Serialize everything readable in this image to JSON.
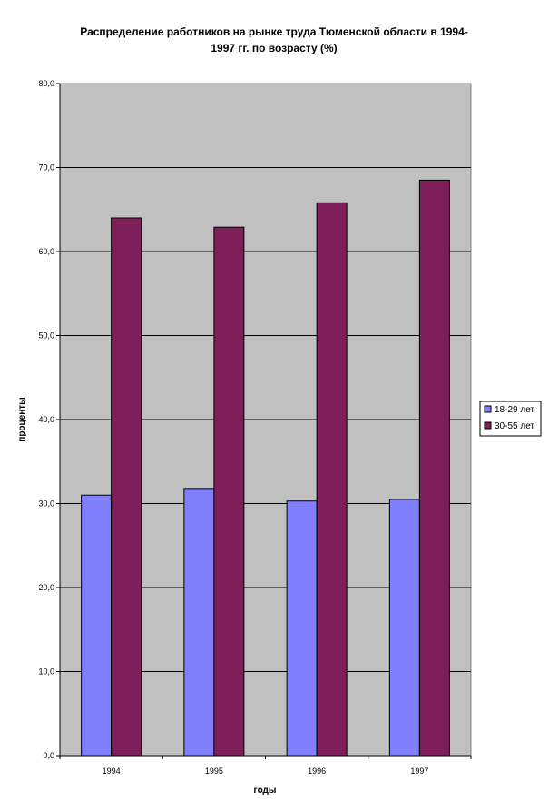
{
  "chart_data": {
    "type": "bar",
    "title_lines": [
      "Распределение работников на рынке труда Тюменской области в 1994-",
      "1997 гг. по возрасту (%)"
    ],
    "xlabel": "годы",
    "ylabel": "проценты",
    "categories": [
      "1994",
      "1995",
      "1996",
      "1997"
    ],
    "series": [
      {
        "name": "18-29 лет",
        "values": [
          31.0,
          31.8,
          30.3,
          30.5
        ],
        "color": "#8080ff"
      },
      {
        "name": "30-55 лет",
        "values": [
          64.0,
          62.9,
          65.8,
          68.5
        ],
        "color": "#7f1f5a"
      }
    ],
    "ylim": [
      0,
      80
    ],
    "yticks": [
      "0,0",
      "10,0",
      "20,0",
      "30,0",
      "40,0",
      "50,0",
      "60,0",
      "70,0",
      "80,0"
    ],
    "grid": true,
    "plot_background": "#c0c0c0",
    "legend_position": "right"
  }
}
